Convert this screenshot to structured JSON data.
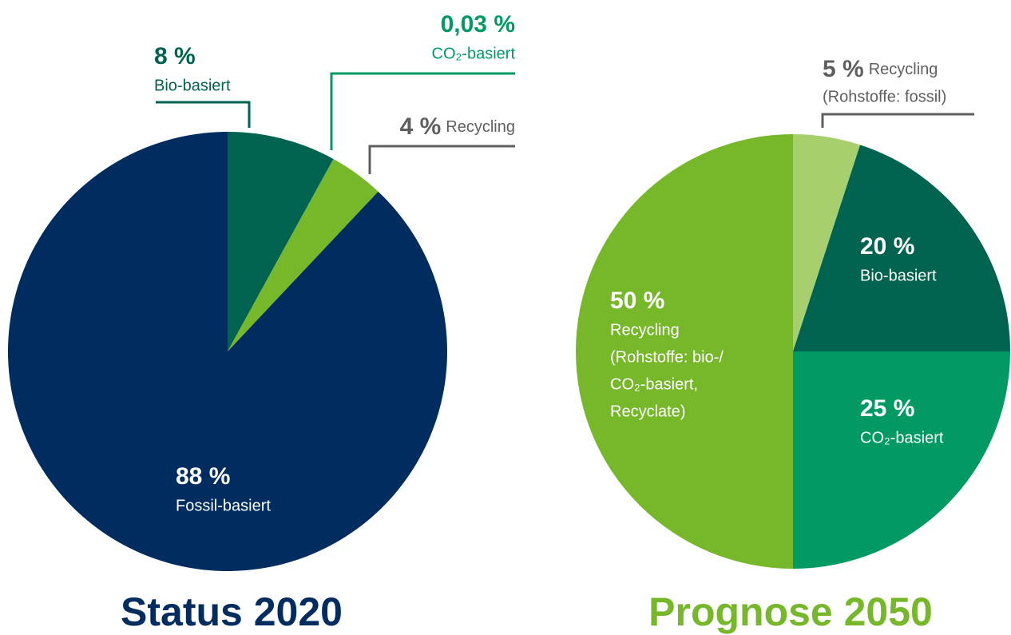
{
  "chart_data": [
    {
      "type": "pie",
      "title": "Status 2020",
      "categories": [
        [
          "Bio-basiert"
        ],
        [
          "CO₂-basiert"
        ],
        [
          "Recycling"
        ],
        [
          "Fossil-basiert"
        ]
      ],
      "values": [
        8,
        0.03,
        4,
        88
      ],
      "value_labels": [
        "8 %",
        "0,03 %",
        "4 %",
        "88 %"
      ],
      "colors": [
        "#00634f",
        "#009a62",
        "#76b82a",
        "#002c5f"
      ],
      "title_color": "#002c5f"
    },
    {
      "type": "pie",
      "title": "Prognose 2050",
      "categories": [
        [
          "Recycling",
          "(Rohstoffe: fossil)"
        ],
        [
          "Bio-basiert"
        ],
        [
          "CO₂-basiert"
        ],
        [
          "Recycling",
          "(Rohstoffe: bio-/",
          "CO₂-basiert,",
          "Recyclate)"
        ]
      ],
      "values": [
        5,
        20,
        25,
        50
      ],
      "value_labels": [
        "5 %",
        "20 %",
        "25 %",
        "50 %"
      ],
      "colors": [
        "#a8cf6e",
        "#00634f",
        "#009a62",
        "#76b82a"
      ],
      "title_color": "#76b82a"
    }
  ]
}
